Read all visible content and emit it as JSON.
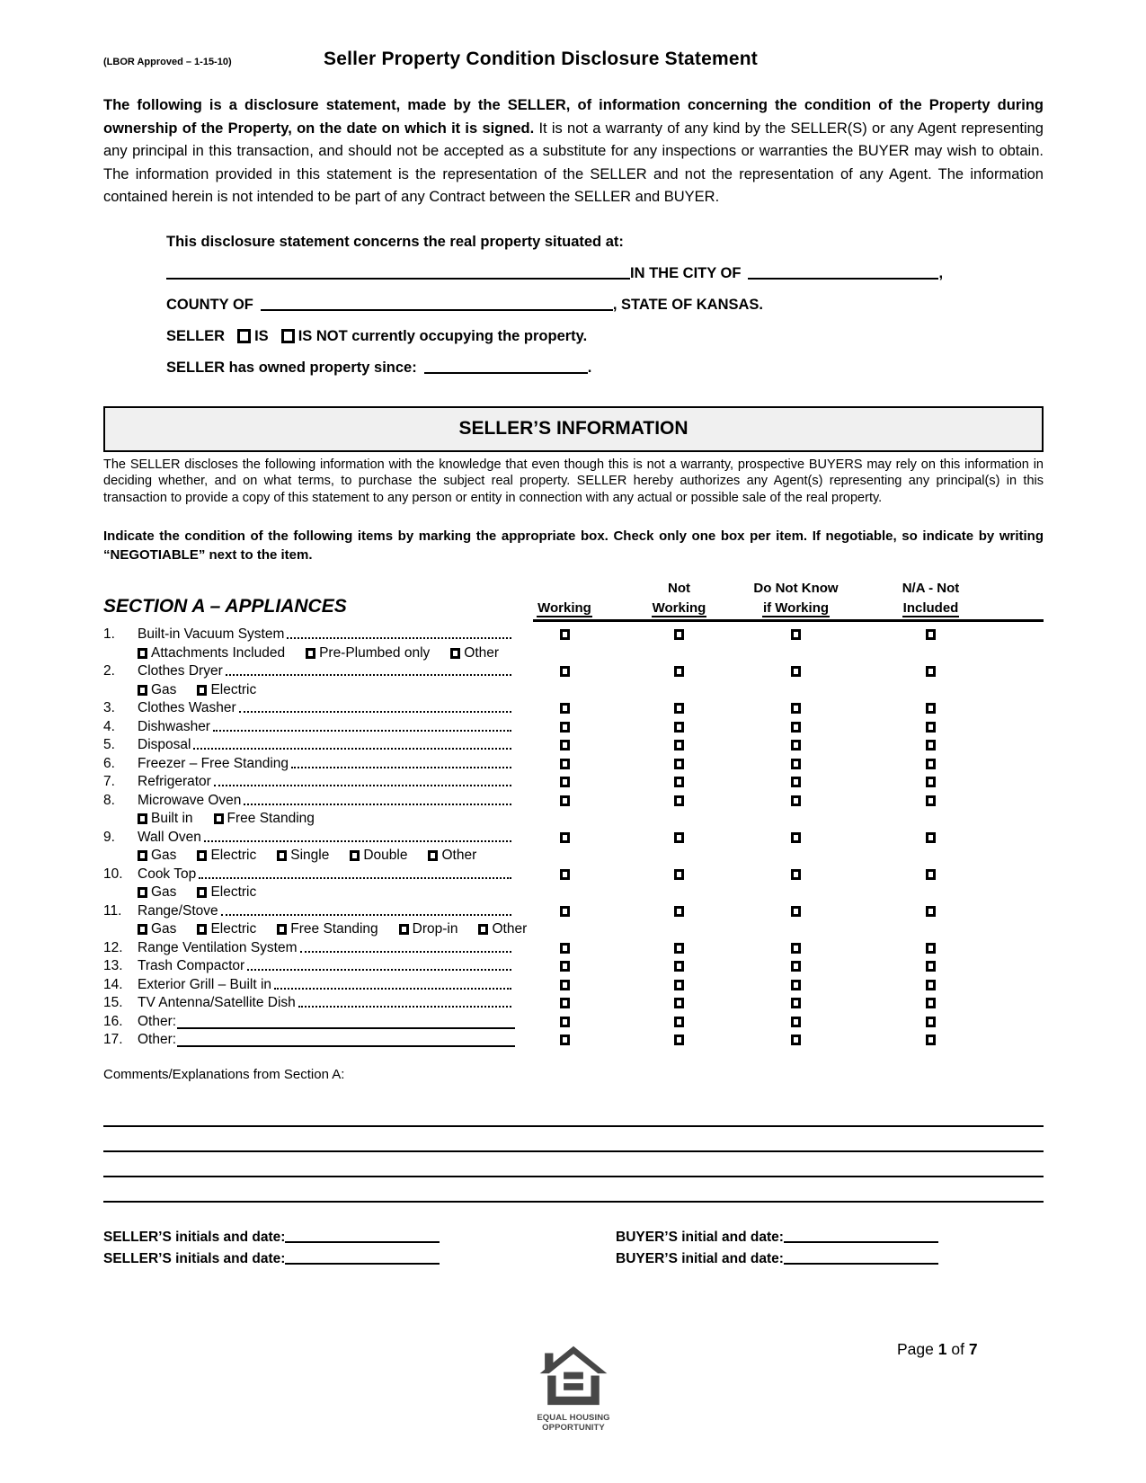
{
  "header": {
    "approval": "(LBOR Approved – 1-15-10)",
    "title": "Seller Property Condition Disclosure Statement"
  },
  "intro": {
    "lead": "The following is a disclosure statement, made by the SELLER, of information concerning the condition of the Property during ownership of the Property, on the date on which it is signed.",
    "body": "  It is not a warranty of any kind by the SELLER(S) or any Agent representing any principal in this transaction, and should not be accepted as a substitute for any inspections or warranties the BUYER may wish to obtain.  The information provided in this statement is the representation of the SELLER and not the representation of any Agent.  The information contained herein is not intended to be part of any Contract between the SELLER and BUYER."
  },
  "property": {
    "intro": "This disclosure statement concerns the real property situated at:",
    "address_value": "",
    "in_city_label": "IN THE CITY OF",
    "city_value": "",
    "city_comma": ",",
    "county_label": "COUNTY OF",
    "county_value": "",
    "state_label": ", STATE OF KANSAS.",
    "seller_label": "SELLER",
    "is_label": "IS",
    "is_not_label": "IS NOT",
    "occupying_label": "currently occupying the property.",
    "owned_label": "SELLER has owned property since:",
    "owned_value": "",
    "owned_period": "."
  },
  "sellers_information": {
    "title": "SELLER’S INFORMATION",
    "body": "The SELLER discloses the following information with the knowledge that even though this is not a warranty, prospective BUYERS may rely on this information in deciding whether, and on what terms, to purchase the subject real property.  SELLER hereby authorizes any Agent(s) representing any principal(s) in this transaction to provide a copy of this statement to any person or entity in connection with any actual or possible sale of the real property."
  },
  "instructions": {
    "text": "Indicate the condition of the following items by marking the appropriate box.  Check only one box per item.  If negotiable, so indicate by writing “NEGOTIABLE” next to the item."
  },
  "section_a": {
    "title": "SECTION A – APPLIANCES",
    "columns": [
      {
        "line1": "",
        "line2": "Working"
      },
      {
        "line1": "Not",
        "line2": "Working"
      },
      {
        "line1": "Do Not Know",
        "line2": "if Working"
      },
      {
        "line1": "N/A - Not",
        "line2": "Included"
      }
    ],
    "items": [
      {
        "num": "1.",
        "label": "Built-in Vacuum System",
        "sub": [
          "Attachments Included",
          "Pre-Plumbed only",
          "Other"
        ]
      },
      {
        "num": "2.",
        "label": "Clothes Dryer",
        "sub": [
          "Gas",
          "Electric"
        ]
      },
      {
        "num": "3.",
        "label": "Clothes Washer"
      },
      {
        "num": "4.",
        "label": "Dishwasher"
      },
      {
        "num": "5.",
        "label": "Disposal"
      },
      {
        "num": "6.",
        "label": "Freezer – Free Standing"
      },
      {
        "num": "7.",
        "label": "Refrigerator"
      },
      {
        "num": "8.",
        "label": "Microwave Oven",
        "sub": [
          "Built in",
          "Free Standing"
        ]
      },
      {
        "num": "9.",
        "label": "Wall Oven",
        "sub": [
          "Gas",
          "Electric",
          "Single",
          "Double",
          "Other"
        ]
      },
      {
        "num": "10.",
        "label": "Cook Top",
        "sub": [
          "Gas",
          "Electric"
        ]
      },
      {
        "num": "11.",
        "label": "Range/Stove",
        "sub": [
          "Gas",
          "Electric",
          "Free Standing",
          "Drop-in",
          "Other"
        ]
      },
      {
        "num": "12.",
        "label": "Range Ventilation System"
      },
      {
        "num": "13.",
        "label": "Trash Compactor"
      },
      {
        "num": "14.",
        "label": "Exterior Grill – Built in"
      },
      {
        "num": "15.",
        "label": "TV Antenna/Satellite Dish"
      },
      {
        "num": "16.",
        "label": "Other:",
        "blank_line": true,
        "value": ""
      },
      {
        "num": "17.",
        "label": "Other:",
        "blank_line": true,
        "value": ""
      }
    ]
  },
  "comments": {
    "label": "Comments/Explanations from Section A:",
    "values": [
      "",
      "",
      "",
      ""
    ]
  },
  "signatures": {
    "seller_label": "SELLER’S initials and date:",
    "buyer_label": "BUYER’S initial and date:",
    "seller_value_1": "",
    "buyer_value_1": "",
    "seller_value_2": "",
    "buyer_value_2": ""
  },
  "footer": {
    "logo_line1": "EQUAL HOUSING",
    "logo_line2": "OPPORTUNITY",
    "page_prefix": "Page",
    "page_number": "1",
    "page_of": "of",
    "page_total": "7"
  }
}
